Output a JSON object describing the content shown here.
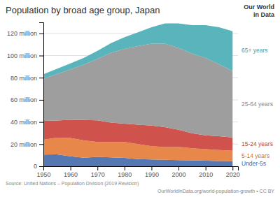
{
  "chart_data": {
    "type": "area",
    "stacked": true,
    "title": "Population by broad age group, Japan",
    "x": [
      1950,
      1955,
      1960,
      1965,
      1970,
      1975,
      1980,
      1985,
      1990,
      1995,
      2000,
      2005,
      2010,
      2015,
      2020
    ],
    "series": [
      {
        "name": "Under-5s",
        "color": "#5578b2",
        "values": [
          10.5,
          10.8,
          9.0,
          7.8,
          8.5,
          8.0,
          7.5,
          6.5,
          6.2,
          5.8,
          5.5,
          5.3,
          5.0,
          4.8,
          4.5
        ]
      },
      {
        "name": "5-14 years",
        "color": "#e8874a",
        "values": [
          13.5,
          15.0,
          16.5,
          15.5,
          13.5,
          14.0,
          14.5,
          13.5,
          12.0,
          11.5,
          12.0,
          11.0,
          10.5,
          9.8,
          9.5
        ]
      },
      {
        "name": "15-24 years",
        "color": "#cf534c",
        "values": [
          17.0,
          15.5,
          16.5,
          18.5,
          19.5,
          17.5,
          16.5,
          17.5,
          18.5,
          18.0,
          15.5,
          13.5,
          12.5,
          12.5,
          12.0
        ]
      },
      {
        "name": "25-64 years",
        "color": "#9e9e9e",
        "values": [
          38.0,
          42.0,
          45.5,
          50.0,
          55.5,
          63.0,
          67.5,
          71.0,
          74.0,
          75.5,
          74.0,
          72.0,
          70.0,
          65.0,
          60.0
        ]
      },
      {
        "name": "65+ years",
        "color": "#5ab4bc",
        "values": [
          4.1,
          4.8,
          5.4,
          6.2,
          7.3,
          8.8,
          10.6,
          12.5,
          14.9,
          18.3,
          22.0,
          25.7,
          29.5,
          33.5,
          36.0
        ]
      }
    ],
    "xlim": [
      1950,
      2022
    ],
    "xticks": [
      1950,
      1960,
      1970,
      1980,
      1990,
      2000,
      2010,
      2020
    ],
    "ylim": [
      0,
      130
    ],
    "yticks": [
      0,
      {
        "value": 20,
        "label": "20 million"
      },
      {
        "value": 40,
        "label": "40 million"
      },
      {
        "value": 60,
        "label": "60 million"
      },
      {
        "value": 80,
        "label": "80 million"
      },
      {
        "value": 100,
        "label": "100 million"
      },
      {
        "value": 120,
        "label": "120 million"
      }
    ],
    "grid": true,
    "annotations": [
      "Our World",
      "in Data",
      "Source: United Nations – Population Division (2019 Revision)",
      "OurWorldInData.org/world-population-growth • CC BY"
    ]
  }
}
